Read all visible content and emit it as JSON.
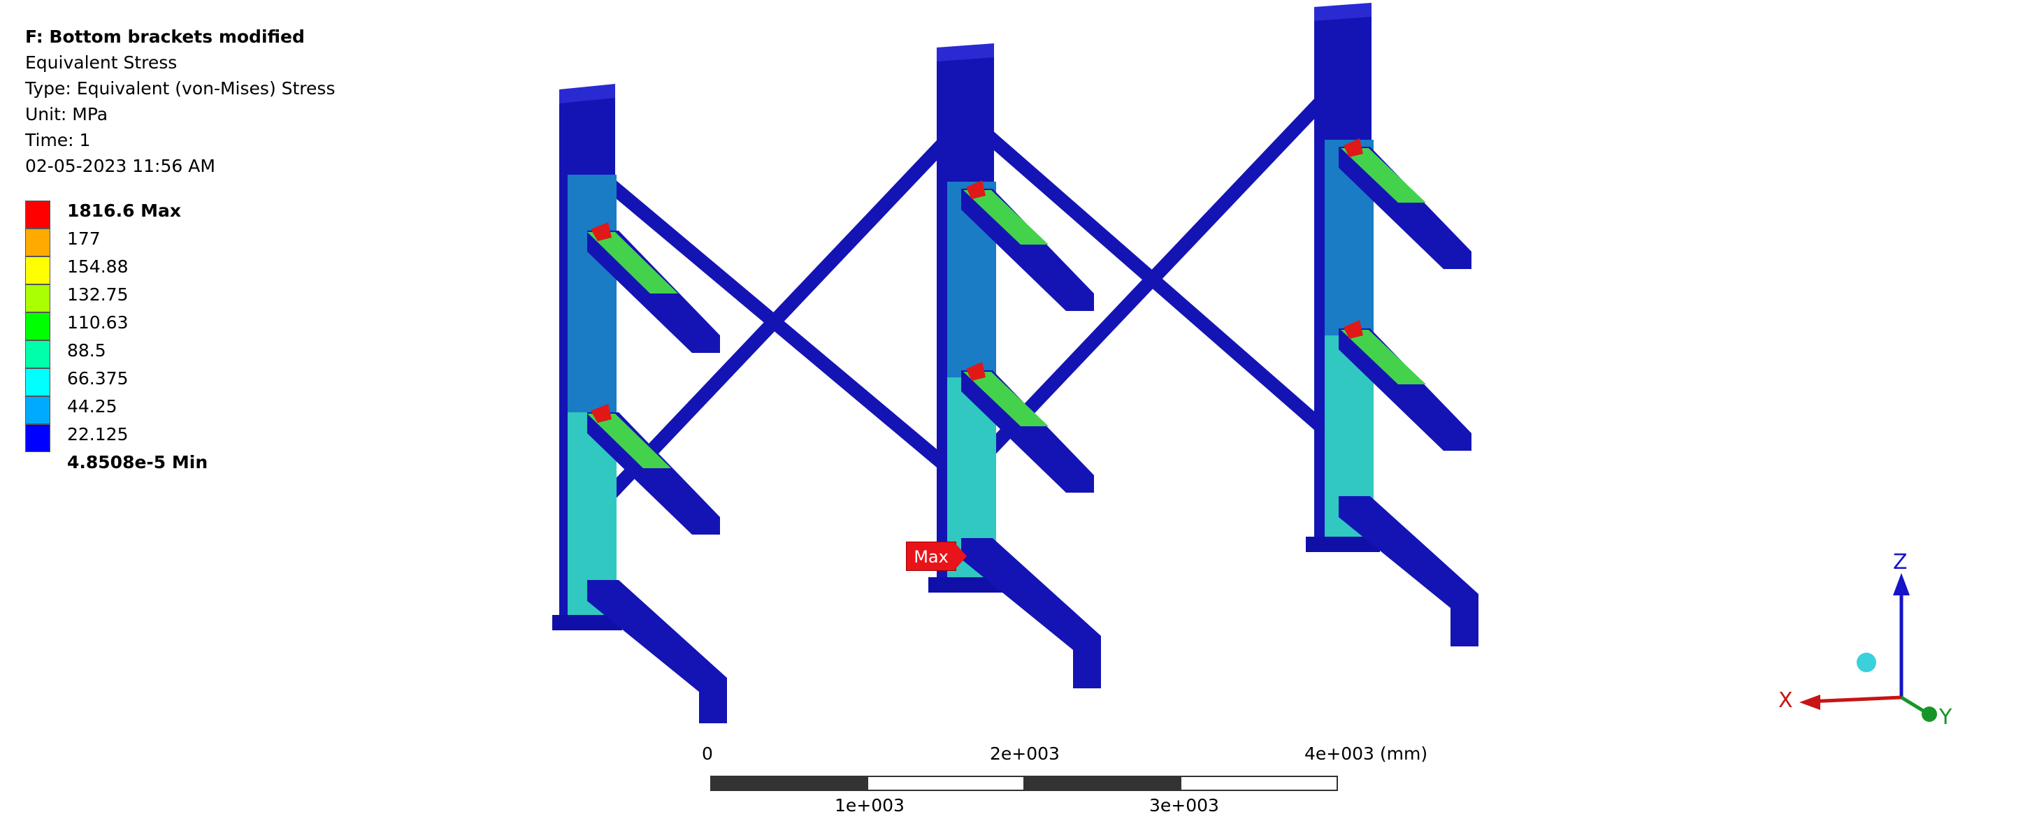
{
  "info": {
    "title": "F: Bottom brackets modified",
    "result": "Equivalent Stress",
    "type": "Type: Equivalent (von-Mises) Stress",
    "unit": "Unit: MPa",
    "time": "Time: 1",
    "timestamp": "02-05-2023 11:56 AM"
  },
  "legend": {
    "entries": [
      {
        "label": "1816.6 Max",
        "color": "#ff0000",
        "bold": true
      },
      {
        "label": "177",
        "color": "#ffaa00",
        "bold": false
      },
      {
        "label": "154.88",
        "color": "#ffff00",
        "bold": false
      },
      {
        "label": "132.75",
        "color": "#aaff00",
        "bold": false
      },
      {
        "label": "110.63",
        "color": "#00ff00",
        "bold": false
      },
      {
        "label": "88.5",
        "color": "#00ffaa",
        "bold": false
      },
      {
        "label": "66.375",
        "color": "#00ffff",
        "bold": false
      },
      {
        "label": "44.25",
        "color": "#00aaff",
        "bold": false
      },
      {
        "label": "22.125",
        "color": "#0000ff",
        "bold": false
      },
      {
        "label": "4.8508e-5 Min",
        "color": null,
        "bold": true
      }
    ]
  },
  "scale_bar": {
    "top_labels": [
      "0",
      "2e+003",
      "4e+003 (mm)"
    ],
    "bottom_labels": [
      "1e+003",
      "3e+003"
    ]
  },
  "probe": {
    "label": "Max"
  },
  "triad": {
    "x": "X",
    "y": "Y",
    "z": "Z"
  },
  "colors": {
    "structure": "#1010b4",
    "low": "#0a0aa8",
    "mid_blue": "#1a78c8",
    "cyan": "#2ec8c0",
    "green": "#42d24a",
    "axis_x": "#c81414",
    "axis_y": "#149628",
    "axis_z": "#1414c8"
  }
}
